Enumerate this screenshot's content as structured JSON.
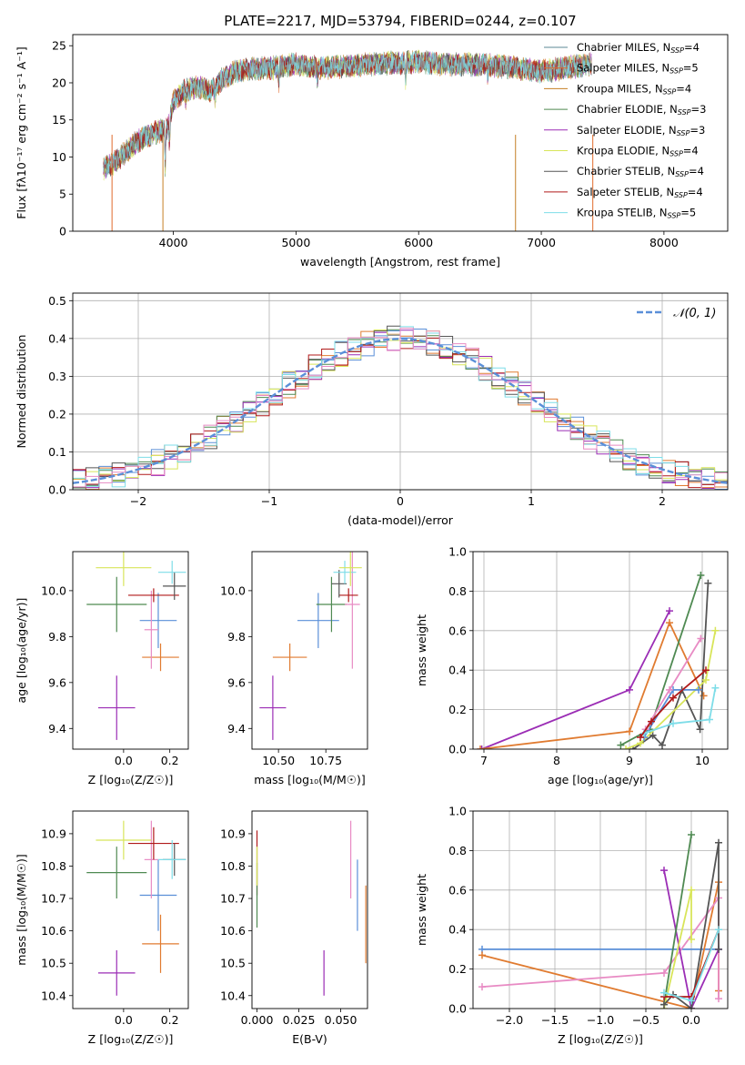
{
  "title": "PLATE=2217, MJD=53794, FIBERID=0244, z=0.107",
  "chart_data": [
    {
      "id": "spectrum",
      "type": "line",
      "xlabel": "wavelength [Angstrom, rest frame]",
      "ylabel": "Flux [fλ10⁻¹⁷ erg cm⁻² s⁻¹ A⁻¹]",
      "xlim": [
        3180,
        8520
      ],
      "ylim": [
        0,
        26.5
      ],
      "xticks": [
        4000,
        5000,
        6000,
        7000,
        8000
      ],
      "yticks": [
        0,
        5,
        10,
        15,
        20,
        25
      ],
      "legend_position": "right",
      "data_range": [
        3430,
        7410
      ],
      "spectrum_knots": {
        "x": [
          3430,
          3500,
          3600,
          3700,
          3800,
          3900,
          3950,
          4000,
          4100,
          4200,
          4300,
          4400,
          4500,
          4600,
          4800,
          5000,
          5200,
          5400,
          5600,
          5800,
          6000,
          6200,
          6400,
          6600,
          6800,
          7000,
          7200,
          7410
        ],
        "y": [
          8.5,
          9.0,
          10.5,
          12.0,
          13.0,
          13.5,
          14.0,
          17.5,
          19.0,
          19.5,
          18.8,
          20.5,
          21.5,
          21.8,
          22.0,
          22.5,
          22.0,
          22.2,
          22.5,
          22.7,
          22.8,
          22.5,
          22.5,
          22.3,
          22.0,
          21.5,
          22.0,
          22.5
        ]
      },
      "series": [
        {
          "name": "Chabrier MILES, N",
          "sub": "SSP",
          "suffix": "=4",
          "color": "#5b8a95"
        },
        {
          "name": "Salpeter MILES, N",
          "sub": "SSP",
          "suffix": "=5",
          "color": "#e06a2a"
        },
        {
          "name": "Kroupa MILES, N",
          "sub": "SSP",
          "suffix": "=4",
          "color": "#c47f25"
        },
        {
          "name": "Chabrier ELODIE, N",
          "sub": "SSP",
          "suffix": "=3",
          "color": "#4f8a52"
        },
        {
          "name": "Salpeter ELODIE, N",
          "sub": "SSP",
          "suffix": "=3",
          "color": "#9b2db5"
        },
        {
          "name": "Kroupa ELODIE, N",
          "sub": "SSP",
          "suffix": "=4",
          "color": "#d8e55a"
        },
        {
          "name": "Chabrier STELIB, N",
          "sub": "SSP",
          "suffix": "=4",
          "color": "#555555"
        },
        {
          "name": "Salpeter STELIB, N",
          "sub": "SSP",
          "suffix": "=4",
          "color": "#b01a1a"
        },
        {
          "name": "Kroupa STELIB, N",
          "sub": "SSP",
          "suffix": "=5",
          "color": "#7edde8"
        }
      ]
    },
    {
      "id": "residuals",
      "type": "histogram",
      "xlabel": "(data-model)/error",
      "ylabel": "Normed distribution",
      "xlim": [
        -2.5,
        2.5
      ],
      "ylim": [
        0,
        0.52
      ],
      "xticks": [
        -2,
        -1,
        0,
        1,
        2
      ],
      "yticks": [
        0.0,
        0.1,
        0.2,
        0.3,
        0.4,
        0.5
      ],
      "grid": true,
      "bin_width": 0.1,
      "legend": {
        "label": "𝒩(0, 1)",
        "position": "top-right",
        "color": "#5a8fd8",
        "style": "dashed"
      },
      "hist_colors": [
        "#5a8fd8",
        "#e07b30",
        "#4f8a52",
        "#9b2db5",
        "#d8e55a",
        "#555555",
        "#b01a1a",
        "#7edde8",
        "#e88bc4"
      ]
    },
    {
      "id": "age-vs-Z",
      "type": "errorbar",
      "xlabel": "Z [log₁₀(Z/Z☉)]",
      "ylabel": "age  [log₁₀(age/yr)]",
      "xlim": [
        -0.22,
        0.28
      ],
      "ylim": [
        9.31,
        10.17
      ],
      "xticks": [
        0.0,
        0.2
      ],
      "yticks": [
        9.4,
        9.6,
        9.8,
        10.0
      ],
      "points": [
        {
          "x": -0.03,
          "xerr": 0.08,
          "y": 9.49,
          "yerr": 0.14,
          "color": "#9b2db5"
        },
        {
          "x": 0.16,
          "xerr": 0.08,
          "y": 9.71,
          "yerr": 0.06,
          "color": "#e07b30"
        },
        {
          "x": 0.15,
          "xerr": 0.08,
          "y": 9.87,
          "yerr": 0.12,
          "color": "#5a8fd8"
        },
        {
          "x": 0.12,
          "xerr": 0.03,
          "y": 9.83,
          "yerr": 0.17,
          "color": "#e88bc4"
        },
        {
          "x": -0.03,
          "xerr": 0.13,
          "y": 9.94,
          "yerr": 0.12,
          "color": "#4f8a52"
        },
        {
          "x": 0.13,
          "xerr": 0.11,
          "y": 9.98,
          "yerr": 0.03,
          "color": "#b01a1a"
        },
        {
          "x": 0.22,
          "xerr": 0.05,
          "y": 10.02,
          "yerr": 0.06,
          "color": "#555555"
        },
        {
          "x": 0.21,
          "xerr": 0.06,
          "y": 10.08,
          "yerr": 0.05,
          "color": "#7edde8"
        },
        {
          "x": 0.0,
          "xerr": 0.12,
          "y": 10.1,
          "yerr": 0.08,
          "color": "#d8e55a"
        }
      ]
    },
    {
      "id": "age-vs-mass",
      "type": "errorbar",
      "xlabel": "mass [log₁₀(M/M☉)]",
      "ylabel": "",
      "xlim": [
        10.36,
        10.97
      ],
      "ylim": [
        9.31,
        10.17
      ],
      "xticks": [
        10.5,
        10.75
      ],
      "yticks": [
        9.4,
        9.6,
        9.8,
        10.0
      ],
      "points": [
        {
          "x": 10.47,
          "xerr": 0.07,
          "y": 9.49,
          "yerr": 0.14,
          "color": "#9b2db5"
        },
        {
          "x": 10.56,
          "xerr": 0.09,
          "y": 9.71,
          "yerr": 0.06,
          "color": "#e07b30"
        },
        {
          "x": 10.71,
          "xerr": 0.11,
          "y": 9.87,
          "yerr": 0.12,
          "color": "#5a8fd8"
        },
        {
          "x": 10.78,
          "xerr": 0.08,
          "y": 9.94,
          "yerr": 0.12,
          "color": "#4f8a52"
        },
        {
          "x": 10.89,
          "xerr": 0.04,
          "y": 9.94,
          "yerr": 0.28,
          "color": "#e88bc4"
        },
        {
          "x": 10.87,
          "xerr": 0.05,
          "y": 9.98,
          "yerr": 0.03,
          "color": "#b01a1a"
        },
        {
          "x": 10.82,
          "xerr": 0.04,
          "y": 10.03,
          "yerr": 0.06,
          "color": "#555555"
        },
        {
          "x": 10.85,
          "xerr": 0.06,
          "y": 10.08,
          "yerr": 0.05,
          "color": "#7edde8"
        },
        {
          "x": 10.88,
          "xerr": 0.06,
          "y": 10.1,
          "yerr": 0.08,
          "color": "#d8e55a"
        }
      ]
    },
    {
      "id": "massweight-vs-age",
      "type": "line",
      "xlabel": "age  [log₁₀(age/yr)]",
      "ylabel": "mass weight",
      "xlim": [
        6.85,
        10.35
      ],
      "ylim": [
        0,
        1
      ],
      "xticks": [
        7,
        8,
        9,
        10
      ],
      "yticks": [
        0.0,
        0.2,
        0.4,
        0.6,
        0.8,
        1.0
      ],
      "grid": true,
      "series": [
        {
          "color": "#9b2db5",
          "x": [
            6.97,
            9.0,
            9.55
          ],
          "y": [
            0.0,
            0.3,
            0.7
          ]
        },
        {
          "color": "#e07b30",
          "x": [
            6.95,
            9.0,
            9.55,
            10.02
          ],
          "y": [
            0.0,
            0.09,
            0.64,
            0.27
          ]
        },
        {
          "color": "#4f8a52",
          "x": [
            8.88,
            9.28,
            9.98
          ],
          "y": [
            0.02,
            0.1,
            0.88
          ]
        },
        {
          "color": "#555555",
          "x": [
            9.05,
            9.32,
            9.45,
            9.72,
            9.97,
            10.08
          ],
          "y": [
            0.0,
            0.07,
            0.02,
            0.3,
            0.1,
            0.84
          ]
        },
        {
          "color": "#d8e55a",
          "x": [
            8.95,
            9.15,
            10.05,
            10.18
          ],
          "y": [
            0.0,
            0.03,
            0.35,
            0.6
          ]
        },
        {
          "color": "#5a8fd8",
          "x": [
            9.2,
            9.6,
            9.95
          ],
          "y": [
            0.06,
            0.3,
            0.3
          ]
        },
        {
          "color": "#e88bc4",
          "x": [
            9.22,
            9.55,
            9.98
          ],
          "y": [
            0.1,
            0.3,
            0.56
          ]
        },
        {
          "color": "#7edde8",
          "x": [
            9.2,
            9.6,
            10.1,
            10.18
          ],
          "y": [
            0.08,
            0.13,
            0.15,
            0.31
          ]
        },
        {
          "color": "#b01a1a",
          "x": [
            9.15,
            9.3,
            9.6,
            10.05
          ],
          "y": [
            0.06,
            0.14,
            0.26,
            0.4
          ]
        }
      ]
    },
    {
      "id": "mass-vs-Z",
      "type": "errorbar",
      "xlabel": "Z [log₁₀(Z/Z☉)]",
      "ylabel": "mass [log₁₀(M/M☉)]",
      "xlim": [
        -0.22,
        0.28
      ],
      "ylim": [
        10.36,
        10.97
      ],
      "xticks": [
        0.0,
        0.2
      ],
      "yticks": [
        10.4,
        10.5,
        10.6,
        10.7,
        10.8,
        10.9
      ],
      "points": [
        {
          "x": -0.03,
          "xerr": 0.08,
          "y": 10.47,
          "yerr": 0.07,
          "color": "#9b2db5"
        },
        {
          "x": 0.16,
          "xerr": 0.08,
          "y": 10.56,
          "yerr": 0.09,
          "color": "#e07b30"
        },
        {
          "x": 0.15,
          "xerr": 0.08,
          "y": 10.71,
          "yerr": 0.11,
          "color": "#5a8fd8"
        },
        {
          "x": -0.03,
          "xerr": 0.13,
          "y": 10.78,
          "yerr": 0.08,
          "color": "#4f8a52"
        },
        {
          "x": 0.12,
          "xerr": 0.03,
          "y": 10.82,
          "yerr": 0.12,
          "color": "#e88bc4"
        },
        {
          "x": 0.13,
          "xerr": 0.11,
          "y": 10.87,
          "yerr": 0.05,
          "color": "#b01a1a"
        },
        {
          "x": 0.22,
          "xerr": 0.05,
          "y": 10.82,
          "yerr": 0.05,
          "color": "#555555"
        },
        {
          "x": 0.21,
          "xerr": 0.06,
          "y": 10.82,
          "yerr": 0.06,
          "color": "#7edde8"
        },
        {
          "x": 0.0,
          "xerr": 0.12,
          "y": 10.88,
          "yerr": 0.06,
          "color": "#d8e55a"
        }
      ]
    },
    {
      "id": "mass-vs-ebv",
      "type": "errorbar",
      "xlabel": "E(B-V)",
      "ylabel": "",
      "xlim": [
        -0.003,
        0.066
      ],
      "ylim": [
        10.36,
        10.97
      ],
      "xticks": [
        0.0,
        0.025,
        0.05
      ],
      "yticks": [
        10.4,
        10.5,
        10.6,
        10.7,
        10.8,
        10.9
      ],
      "points": [
        {
          "x": 0.0,
          "xerr": 0,
          "y": 10.81,
          "yerr": 0.1,
          "color": "#b01a1a"
        },
        {
          "x": 0.0,
          "xerr": 0,
          "y": 10.71,
          "yerr": 0.1,
          "color": "#4f8a52"
        },
        {
          "x": 0.0,
          "xerr": 0,
          "y": 10.8,
          "yerr": 0.06,
          "color": "#d8e55a"
        },
        {
          "x": 0.04,
          "xerr": 0,
          "y": 10.47,
          "yerr": 0.07,
          "color": "#9b2db5"
        },
        {
          "x": 0.056,
          "xerr": 0,
          "y": 10.82,
          "yerr": 0.12,
          "color": "#e88bc4"
        },
        {
          "x": 0.06,
          "xerr": 0,
          "y": 10.71,
          "yerr": 0.11,
          "color": "#5a8fd8"
        },
        {
          "x": 0.065,
          "xerr": 0,
          "y": 10.62,
          "yerr": 0.12,
          "color": "#e07b30"
        }
      ]
    },
    {
      "id": "massweight-vs-Z",
      "type": "line",
      "xlabel": "Z [log₁₀(Z/Z☉)]",
      "ylabel": "mass weight",
      "xlim": [
        -2.4,
        0.4
      ],
      "ylim": [
        0,
        1
      ],
      "xticks": [
        -2.0,
        -1.5,
        -1.0,
        -0.5,
        0.0
      ],
      "yticks": [
        0.0,
        0.2,
        0.4,
        0.6,
        0.8,
        1.0
      ],
      "grid": true,
      "series": [
        {
          "color": "#5a8fd8",
          "x": [
            -2.3,
            0.3,
            0.3
          ],
          "y": [
            0.3,
            0.3,
            0.3
          ]
        },
        {
          "color": "#e07b30",
          "x": [
            -2.3,
            0.0,
            0.3,
            0.3
          ],
          "y": [
            0.27,
            0.0,
            0.64,
            0.09
          ]
        },
        {
          "color": "#e88bc4",
          "x": [
            -2.3,
            -0.3,
            0.3,
            0.3
          ],
          "y": [
            0.11,
            0.18,
            0.56,
            0.05
          ]
        },
        {
          "color": "#9b2db5",
          "x": [
            -0.3,
            0.0,
            0.3
          ],
          "y": [
            0.7,
            0.0,
            0.3
          ]
        },
        {
          "color": "#4f8a52",
          "x": [
            -0.3,
            0.0
          ],
          "y": [
            0.02,
            0.88
          ]
        },
        {
          "color": "#d8e55a",
          "x": [
            -0.3,
            0.0,
            0.0
          ],
          "y": [
            0.0,
            0.6,
            0.35
          ]
        },
        {
          "color": "#555555",
          "x": [
            -0.3,
            -0.2,
            0.0,
            0.3,
            0.3
          ],
          "y": [
            0.02,
            0.07,
            0.0,
            0.84,
            0.3
          ]
        },
        {
          "color": "#b01a1a",
          "x": [
            -0.3,
            0.0,
            0.3
          ],
          "y": [
            0.06,
            0.06,
            0.4
          ]
        },
        {
          "color": "#7edde8",
          "x": [
            -0.3,
            0.0,
            0.3
          ],
          "y": [
            0.08,
            0.04,
            0.4
          ]
        }
      ]
    }
  ]
}
